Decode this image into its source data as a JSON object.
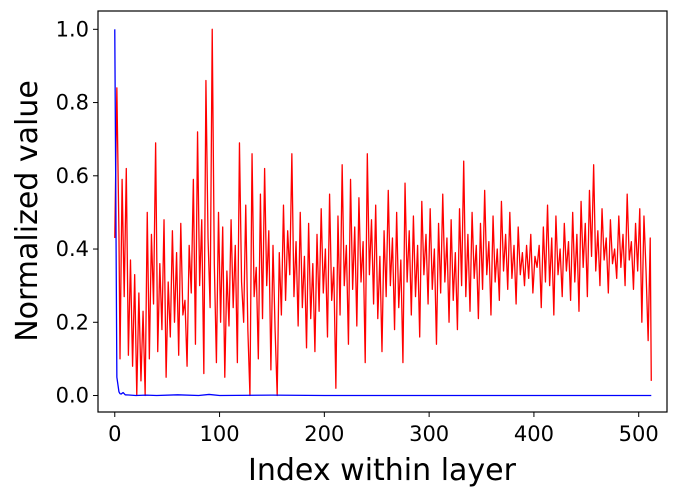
{
  "chart_data": {
    "type": "line",
    "title": "",
    "xlabel": "Index within layer",
    "ylabel": "Normalized value",
    "xlim": [
      -16,
      527
    ],
    "ylim": [
      -0.045,
      1.05
    ],
    "x_ticks": [
      0,
      100,
      200,
      300,
      400,
      500
    ],
    "x_tick_labels": [
      "0",
      "100",
      "200",
      "300",
      "400",
      "500"
    ],
    "y_ticks": [
      0.0,
      0.2,
      0.4,
      0.6,
      0.8,
      1.0
    ],
    "y_tick_labels": [
      "0.0",
      "0.2",
      "0.4",
      "0.6",
      "0.8",
      "1.0"
    ],
    "grid": false,
    "legend": "none",
    "series": [
      {
        "color": "#ff0000",
        "points": [
          [
            0,
            0.43
          ],
          [
            2,
            0.84
          ],
          [
            4,
            0.44
          ],
          [
            5,
            0.1
          ],
          [
            7,
            0.59
          ],
          [
            9,
            0.27
          ],
          [
            11,
            0.62
          ],
          [
            13,
            0.11
          ],
          [
            15,
            0.37
          ],
          [
            17,
            0.08
          ],
          [
            19,
            0.33
          ],
          [
            21,
            0.0
          ],
          [
            23,
            0.28
          ],
          [
            25,
            0.04
          ],
          [
            27,
            0.23
          ],
          [
            29,
            0.0
          ],
          [
            31,
            0.5
          ],
          [
            33,
            0.1
          ],
          [
            35,
            0.44
          ],
          [
            37,
            0.25
          ],
          [
            39,
            0.69
          ],
          [
            41,
            0.12
          ],
          [
            43,
            0.36
          ],
          [
            45,
            0.18
          ],
          [
            47,
            0.48
          ],
          [
            49,
            0.05
          ],
          [
            51,
            0.31
          ],
          [
            53,
            0.16
          ],
          [
            55,
            0.45
          ],
          [
            57,
            0.2
          ],
          [
            59,
            0.39
          ],
          [
            61,
            0.11
          ],
          [
            63,
            0.47
          ],
          [
            65,
            0.22
          ],
          [
            67,
            0.26
          ],
          [
            69,
            0.08
          ],
          [
            71,
            0.41
          ],
          [
            73,
            0.28
          ],
          [
            75,
            0.59
          ],
          [
            77,
            0.14
          ],
          [
            79,
            0.72
          ],
          [
            81,
            0.3
          ],
          [
            83,
            0.48
          ],
          [
            85,
            0.06
          ],
          [
            87,
            0.86
          ],
          [
            89,
            0.43
          ],
          [
            91,
            0.24
          ],
          [
            93,
            1.0
          ],
          [
            95,
            0.36
          ],
          [
            97,
            0.09
          ],
          [
            99,
            0.5
          ],
          [
            101,
            0.2
          ],
          [
            103,
            0.46
          ],
          [
            105,
            0.05
          ],
          [
            107,
            0.34
          ],
          [
            109,
            0.19
          ],
          [
            111,
            0.48
          ],
          [
            113,
            0.24
          ],
          [
            115,
            0.41
          ],
          [
            117,
            0.09
          ],
          [
            119,
            0.69
          ],
          [
            121,
            0.31
          ],
          [
            123,
            0.2
          ],
          [
            125,
            0.52
          ],
          [
            127,
            0.18
          ],
          [
            129,
            0.0
          ],
          [
            131,
            0.66
          ],
          [
            133,
            0.27
          ],
          [
            135,
            0.35
          ],
          [
            137,
            0.1
          ],
          [
            139,
            0.55
          ],
          [
            141,
            0.21
          ],
          [
            143,
            0.62
          ],
          [
            145,
            0.3
          ],
          [
            147,
            0.45
          ],
          [
            149,
            0.07
          ],
          [
            151,
            0.41
          ],
          [
            153,
            0.18
          ],
          [
            155,
            0.0
          ],
          [
            157,
            0.39
          ],
          [
            159,
            0.22
          ],
          [
            161,
            0.52
          ],
          [
            163,
            0.26
          ],
          [
            165,
            0.45
          ],
          [
            167,
            0.33
          ],
          [
            169,
            0.66
          ],
          [
            171,
            0.27
          ],
          [
            173,
            0.42
          ],
          [
            175,
            0.19
          ],
          [
            177,
            0.5
          ],
          [
            179,
            0.24
          ],
          [
            181,
            0.38
          ],
          [
            183,
            0.13
          ],
          [
            185,
            0.47
          ],
          [
            187,
            0.21
          ],
          [
            189,
            0.36
          ],
          [
            191,
            0.12
          ],
          [
            193,
            0.44
          ],
          [
            195,
            0.23
          ],
          [
            197,
            0.51
          ],
          [
            199,
            0.28
          ],
          [
            201,
            0.4
          ],
          [
            203,
            0.16
          ],
          [
            205,
            0.55
          ],
          [
            207,
            0.26
          ],
          [
            209,
            0.35
          ],
          [
            211,
            0.02
          ],
          [
            213,
            0.49
          ],
          [
            215,
            0.22
          ],
          [
            217,
            0.63
          ],
          [
            219,
            0.3
          ],
          [
            221,
            0.41
          ],
          [
            223,
            0.14
          ],
          [
            225,
            0.59
          ],
          [
            227,
            0.29
          ],
          [
            229,
            0.46
          ],
          [
            231,
            0.19
          ],
          [
            233,
            0.54
          ],
          [
            235,
            0.31
          ],
          [
            237,
            0.42
          ],
          [
            239,
            0.09
          ],
          [
            241,
            0.66
          ],
          [
            243,
            0.33
          ],
          [
            245,
            0.48
          ],
          [
            247,
            0.25
          ],
          [
            249,
            0.52
          ],
          [
            251,
            0.21
          ],
          [
            253,
            0.38
          ],
          [
            255,
            0.12
          ],
          [
            257,
            0.45
          ],
          [
            259,
            0.27
          ],
          [
            261,
            0.56
          ],
          [
            263,
            0.3
          ],
          [
            265,
            0.43
          ],
          [
            267,
            0.18
          ],
          [
            269,
            0.5
          ],
          [
            271,
            0.24
          ],
          [
            273,
            0.37
          ],
          [
            275,
            0.09
          ],
          [
            277,
            0.58
          ],
          [
            279,
            0.31
          ],
          [
            281,
            0.45
          ],
          [
            283,
            0.22
          ],
          [
            285,
            0.49
          ],
          [
            287,
            0.27
          ],
          [
            289,
            0.41
          ],
          [
            291,
            0.16
          ],
          [
            293,
            0.53
          ],
          [
            295,
            0.33
          ],
          [
            297,
            0.44
          ],
          [
            299,
            0.25
          ],
          [
            301,
            0.51
          ],
          [
            303,
            0.29
          ],
          [
            305,
            0.4
          ],
          [
            307,
            0.14
          ],
          [
            309,
            0.47
          ],
          [
            311,
            0.28
          ],
          [
            313,
            0.55
          ],
          [
            315,
            0.31
          ],
          [
            317,
            0.43
          ],
          [
            319,
            0.2
          ],
          [
            321,
            0.48
          ],
          [
            323,
            0.26
          ],
          [
            325,
            0.39
          ],
          [
            327,
            0.18
          ],
          [
            329,
            0.51
          ],
          [
            331,
            0.3
          ],
          [
            333,
            0.64
          ],
          [
            335,
            0.27
          ],
          [
            337,
            0.44
          ],
          [
            339,
            0.23
          ],
          [
            341,
            0.5
          ],
          [
            343,
            0.32
          ],
          [
            345,
            0.41
          ],
          [
            347,
            0.21
          ],
          [
            349,
            0.47
          ],
          [
            351,
            0.29
          ],
          [
            353,
            0.56
          ],
          [
            355,
            0.33
          ],
          [
            357,
            0.42
          ],
          [
            359,
            0.22
          ],
          [
            361,
            0.49
          ],
          [
            363,
            0.31
          ],
          [
            365,
            0.4
          ],
          [
            367,
            0.26
          ],
          [
            369,
            0.53
          ],
          [
            371,
            0.34
          ],
          [
            373,
            0.44
          ],
          [
            375,
            0.29
          ],
          [
            377,
            0.5
          ],
          [
            379,
            0.32
          ],
          [
            381,
            0.41
          ],
          [
            383,
            0.25
          ],
          [
            385,
            0.46
          ],
          [
            387,
            0.33
          ],
          [
            389,
            0.39
          ],
          [
            391,
            0.3
          ],
          [
            393,
            0.41
          ],
          [
            395,
            0.32
          ],
          [
            397,
            0.44
          ],
          [
            399,
            0.28
          ],
          [
            401,
            0.38
          ],
          [
            403,
            0.35
          ],
          [
            405,
            0.41
          ],
          [
            407,
            0.24
          ],
          [
            409,
            0.46
          ],
          [
            411,
            0.31
          ],
          [
            413,
            0.52
          ],
          [
            415,
            0.3
          ],
          [
            417,
            0.43
          ],
          [
            419,
            0.22
          ],
          [
            421,
            0.49
          ],
          [
            423,
            0.33
          ],
          [
            425,
            0.4
          ],
          [
            427,
            0.27
          ],
          [
            429,
            0.47
          ],
          [
            431,
            0.34
          ],
          [
            433,
            0.42
          ],
          [
            435,
            0.26
          ],
          [
            437,
            0.5
          ],
          [
            439,
            0.31
          ],
          [
            441,
            0.44
          ],
          [
            443,
            0.23
          ],
          [
            445,
            0.53
          ],
          [
            447,
            0.35
          ],
          [
            449,
            0.47
          ],
          [
            451,
            0.27
          ],
          [
            453,
            0.56
          ],
          [
            455,
            0.38
          ],
          [
            457,
            0.63
          ],
          [
            459,
            0.34
          ],
          [
            461,
            0.45
          ],
          [
            463,
            0.3
          ],
          [
            465,
            0.51
          ],
          [
            467,
            0.37
          ],
          [
            469,
            0.43
          ],
          [
            471,
            0.28
          ],
          [
            473,
            0.48
          ],
          [
            475,
            0.36
          ],
          [
            477,
            0.4
          ],
          [
            479,
            0.32
          ],
          [
            481,
            0.49
          ],
          [
            483,
            0.35
          ],
          [
            485,
            0.44
          ],
          [
            487,
            0.3
          ],
          [
            489,
            0.55
          ],
          [
            491,
            0.37
          ],
          [
            493,
            0.42
          ],
          [
            495,
            0.29
          ],
          [
            497,
            0.47
          ],
          [
            499,
            0.34
          ],
          [
            501,
            0.51
          ],
          [
            503,
            0.2
          ],
          [
            505,
            0.49
          ],
          [
            507,
            0.34
          ],
          [
            509,
            0.15
          ],
          [
            511,
            0.43
          ],
          [
            512,
            0.04
          ]
        ]
      },
      {
        "color": "#0000ff",
        "points": [
          [
            0,
            1.0
          ],
          [
            1,
            0.54
          ],
          [
            2,
            0.05
          ],
          [
            3,
            0.03
          ],
          [
            4,
            0.01
          ],
          [
            5,
            0.005
          ],
          [
            6,
            0.004
          ],
          [
            8,
            0.008
          ],
          [
            10,
            0.002
          ],
          [
            15,
            0.001
          ],
          [
            20,
            0.0
          ],
          [
            30,
            0.001
          ],
          [
            40,
            0.0
          ],
          [
            60,
            0.002
          ],
          [
            80,
            0.0
          ],
          [
            90,
            0.003
          ],
          [
            100,
            0.0
          ],
          [
            150,
            0.001
          ],
          [
            200,
            0.0
          ],
          [
            250,
            0.0
          ],
          [
            300,
            0.0
          ],
          [
            350,
            0.0
          ],
          [
            400,
            0.0
          ],
          [
            450,
            0.0
          ],
          [
            500,
            0.0
          ],
          [
            512,
            0.0
          ]
        ]
      }
    ]
  }
}
